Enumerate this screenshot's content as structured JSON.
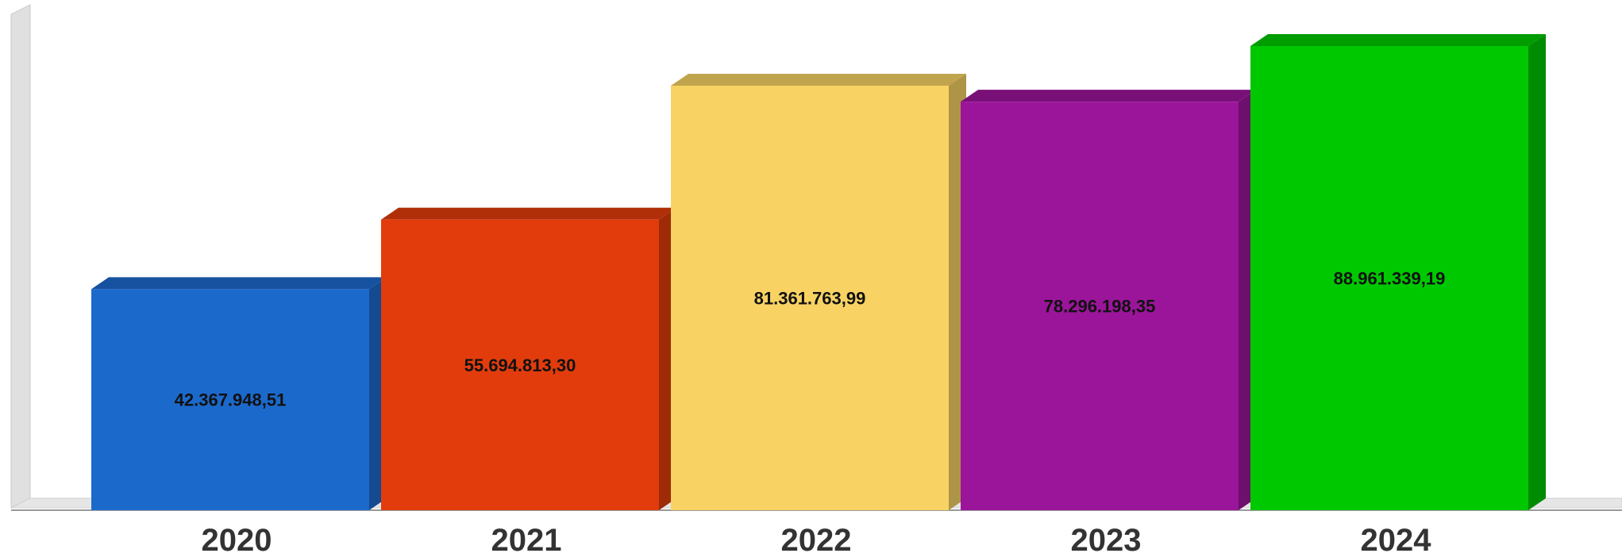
{
  "chart_data": {
    "type": "bar",
    "title": "",
    "xlabel": "",
    "ylabel": "",
    "categories": [
      "2020",
      "2021",
      "2022",
      "2023",
      "2024"
    ],
    "values": [
      42367948.51,
      55694813.3,
      81361763.99,
      78296198.35,
      88961339.19
    ],
    "value_labels": [
      "42.367.948,51",
      "55.694.813,30",
      "81.361.763,99",
      "78.296.198,35",
      "88.961.339,19"
    ],
    "colors": [
      "#1c69cc",
      "#e23c0c",
      "#f8d364",
      "#9b159a",
      "#00c800"
    ],
    "ylim": [
      0,
      95000000
    ],
    "grid": false,
    "legend": "none",
    "style": "3d"
  }
}
